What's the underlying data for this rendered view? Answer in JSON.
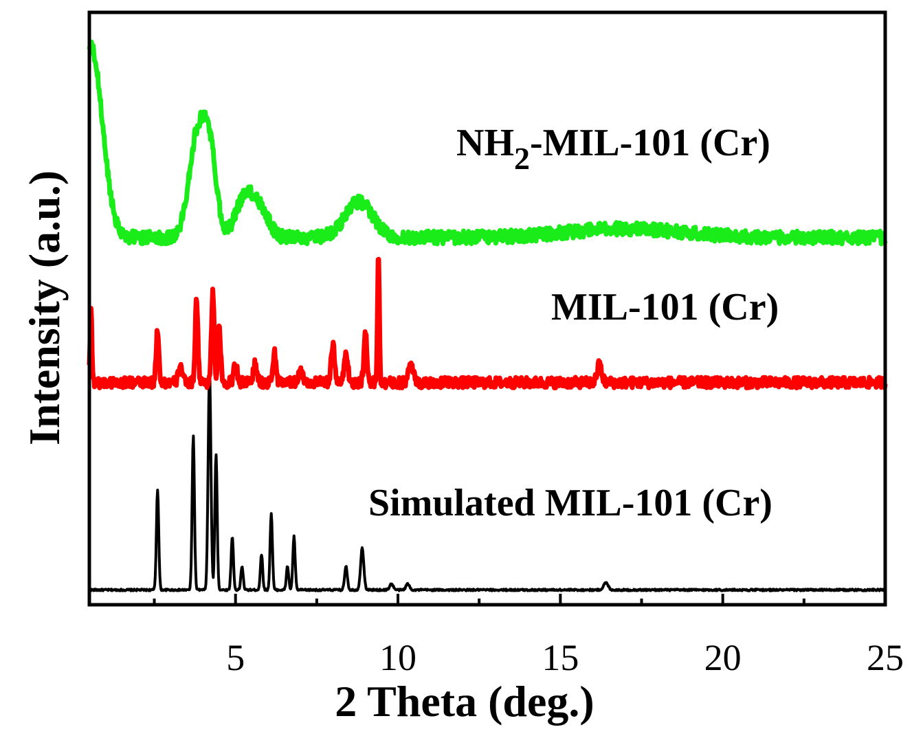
{
  "chart_data": {
    "type": "line",
    "title": "",
    "xlabel": "2 Theta (deg.)",
    "ylabel": "Intensity (a.u.)",
    "xlim": [
      0.5,
      25
    ],
    "ylim": [
      0,
      1
    ],
    "x_ticks": [
      5,
      10,
      15,
      20,
      25
    ],
    "x_tick_labels": [
      "5",
      "10",
      "15",
      "20",
      "25"
    ],
    "grid": false,
    "y_tick_labels_shown": false,
    "series": [
      {
        "name": "Simulated MIL-101 (Cr)",
        "label": "Simulated MIL-101 (Cr)",
        "color": "#000000",
        "noise": 0.0015,
        "baseline": 0.025,
        "peaks": [
          {
            "x": 2.6,
            "h": 0.17,
            "w": 0.05
          },
          {
            "x": 3.7,
            "h": 0.26,
            "w": 0.05
          },
          {
            "x": 4.2,
            "h": 0.37,
            "w": 0.06
          },
          {
            "x": 4.4,
            "h": 0.23,
            "w": 0.05
          },
          {
            "x": 4.9,
            "h": 0.09,
            "w": 0.05
          },
          {
            "x": 5.2,
            "h": 0.04,
            "w": 0.05
          },
          {
            "x": 5.8,
            "h": 0.06,
            "w": 0.05
          },
          {
            "x": 6.1,
            "h": 0.13,
            "w": 0.05
          },
          {
            "x": 6.6,
            "h": 0.04,
            "w": 0.05
          },
          {
            "x": 6.8,
            "h": 0.09,
            "w": 0.05
          },
          {
            "x": 8.4,
            "h": 0.04,
            "w": 0.06
          },
          {
            "x": 8.9,
            "h": 0.07,
            "w": 0.07
          },
          {
            "x": 9.8,
            "h": 0.01,
            "w": 0.08
          },
          {
            "x": 10.3,
            "h": 0.01,
            "w": 0.08
          },
          {
            "x": 16.4,
            "h": 0.012,
            "w": 0.1
          }
        ]
      },
      {
        "name": "MIL-101 (Cr)",
        "label": "MIL-101 (Cr)",
        "color": "#ff0000",
        "noise": 0.009,
        "baseline": 0.375,
        "peaks": [
          {
            "x": 0.55,
            "h": 0.13,
            "w": 0.04
          },
          {
            "x": 2.6,
            "h": 0.09,
            "w": 0.06
          },
          {
            "x": 3.3,
            "h": 0.03,
            "w": 0.08
          },
          {
            "x": 3.8,
            "h": 0.14,
            "w": 0.06
          },
          {
            "x": 4.3,
            "h": 0.15,
            "w": 0.06
          },
          {
            "x": 4.5,
            "h": 0.09,
            "w": 0.06
          },
          {
            "x": 5.0,
            "h": 0.03,
            "w": 0.08
          },
          {
            "x": 5.6,
            "h": 0.03,
            "w": 0.08
          },
          {
            "x": 6.2,
            "h": 0.05,
            "w": 0.07
          },
          {
            "x": 7.0,
            "h": 0.02,
            "w": 0.1
          },
          {
            "x": 8.0,
            "h": 0.06,
            "w": 0.08
          },
          {
            "x": 8.4,
            "h": 0.05,
            "w": 0.08
          },
          {
            "x": 9.0,
            "h": 0.08,
            "w": 0.07
          },
          {
            "x": 9.4,
            "h": 0.22,
            "w": 0.04
          },
          {
            "x": 10.4,
            "h": 0.03,
            "w": 0.1
          },
          {
            "x": 16.2,
            "h": 0.03,
            "w": 0.1
          }
        ]
      },
      {
        "name": "NH2-MIL-101 (Cr)",
        "label_main": "NH",
        "label_sub": "2",
        "label_rest": "-MIL-101 (Cr)",
        "color": "#1aec1a",
        "noise": 0.011,
        "baseline": 0.62,
        "peaks": [
          {
            "x": 0.55,
            "h": 0.32,
            "w": 0.5
          },
          {
            "x": 3.8,
            "h": 0.16,
            "w": 0.35
          },
          {
            "x": 4.2,
            "h": 0.14,
            "w": 0.3
          },
          {
            "x": 5.3,
            "h": 0.07,
            "w": 0.4
          },
          {
            "x": 5.8,
            "h": 0.04,
            "w": 0.35
          },
          {
            "x": 8.8,
            "h": 0.06,
            "w": 0.6
          },
          {
            "x": 17.0,
            "h": 0.015,
            "w": 2.5
          }
        ]
      }
    ]
  }
}
